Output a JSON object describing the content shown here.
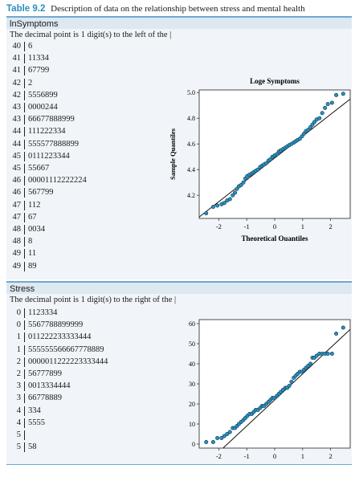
{
  "caption": {
    "table_number": "Table 9.2",
    "text": "Description of data on the relationship between stress and mental health"
  },
  "symptoms": {
    "header": "lnSymptoms",
    "note": "The decimal point is 1 digit(s) to the left of the |",
    "stem_leaf": [
      {
        "stem": "40",
        "leaves": "6"
      },
      {
        "stem": "41",
        "leaves": "11334"
      },
      {
        "stem": "41",
        "leaves": "67799"
      },
      {
        "stem": "42",
        "leaves": "2"
      },
      {
        "stem": "42",
        "leaves": "5556899"
      },
      {
        "stem": "43",
        "leaves": "0000244"
      },
      {
        "stem": "43",
        "leaves": "66677888999"
      },
      {
        "stem": "44",
        "leaves": "111222334"
      },
      {
        "stem": "44",
        "leaves": "555577888899"
      },
      {
        "stem": "45",
        "leaves": "0111223344"
      },
      {
        "stem": "45",
        "leaves": "55667"
      },
      {
        "stem": "46",
        "leaves": "00001112222224"
      },
      {
        "stem": "46",
        "leaves": "567799"
      },
      {
        "stem": "47",
        "leaves": "112"
      },
      {
        "stem": "47",
        "leaves": "67"
      },
      {
        "stem": "48",
        "leaves": "0034"
      },
      {
        "stem": "48",
        "leaves": "8"
      },
      {
        "stem": "49",
        "leaves": "11"
      },
      {
        "stem": "49",
        "leaves": "89"
      }
    ]
  },
  "stress": {
    "header": "Stress",
    "note": "The decimal point is 1 digit(s) to the right of the |",
    "stem_leaf": [
      {
        "stem": "0",
        "leaves": "1123334"
      },
      {
        "stem": "0",
        "leaves": "5567788899999"
      },
      {
        "stem": "1",
        "leaves": "011222233333444"
      },
      {
        "stem": "1",
        "leaves": "555555566667778889"
      },
      {
        "stem": "2",
        "leaves": "0000011222223333444"
      },
      {
        "stem": "2",
        "leaves": "56777899"
      },
      {
        "stem": "3",
        "leaves": "0013334444"
      },
      {
        "stem": "3",
        "leaves": "66778889"
      },
      {
        "stem": "4",
        "leaves": "334"
      },
      {
        "stem": "4",
        "leaves": "5555"
      },
      {
        "stem": "5",
        "leaves": ""
      },
      {
        "stem": "5",
        "leaves": "58"
      }
    ]
  },
  "chart_data": [
    {
      "type": "scatter",
      "title": "Loge Symptoms",
      "xlabel": "Theoretical Quantiles",
      "ylabel": "Sample Quantiles",
      "xlim": [
        -2.7,
        2.7
      ],
      "ylim": [
        4.02,
        5.02
      ],
      "x_ticks": [
        "-2",
        "-1",
        "0",
        "1",
        "2"
      ],
      "y_ticks": [
        "4.2",
        "4.4",
        "4.6",
        "4.8",
        "5.0"
      ],
      "reference_line": {
        "intercept": 4.49,
        "slope": 0.17
      },
      "point_color": "#2a8fbd",
      "x": [
        -2.45,
        -2.2,
        -2.05,
        -1.9,
        -1.8,
        -1.7,
        -1.6,
        -1.5,
        -1.42,
        -1.35,
        -1.28,
        -1.2,
        -1.12,
        -1.05,
        -0.98,
        -0.9,
        -0.82,
        -0.75,
        -0.68,
        -0.6,
        -0.52,
        -0.45,
        -0.38,
        -0.3,
        -0.22,
        -0.15,
        -0.08,
        0.0,
        0.08,
        0.15,
        0.22,
        0.3,
        0.38,
        0.45,
        0.52,
        0.6,
        0.68,
        0.75,
        0.82,
        0.9,
        0.98,
        1.05,
        1.12,
        1.2,
        1.28,
        1.35,
        1.42,
        1.5,
        1.6,
        1.7,
        1.8,
        1.9,
        2.05,
        2.2,
        2.45
      ],
      "y": [
        4.06,
        4.11,
        4.12,
        4.13,
        4.14,
        4.16,
        4.17,
        4.2,
        4.22,
        4.25,
        4.27,
        4.28,
        4.3,
        4.33,
        4.35,
        4.36,
        4.37,
        4.38,
        4.39,
        4.4,
        4.42,
        4.43,
        4.44,
        4.45,
        4.47,
        4.48,
        4.5,
        4.51,
        4.52,
        4.54,
        4.55,
        4.56,
        4.57,
        4.58,
        4.59,
        4.6,
        4.61,
        4.62,
        4.63,
        4.64,
        4.66,
        4.68,
        4.7,
        4.71,
        4.73,
        4.75,
        4.77,
        4.79,
        4.8,
        4.84,
        4.88,
        4.91,
        4.92,
        4.98,
        4.99
      ]
    },
    {
      "type": "scatter",
      "title": "",
      "xlabel": "",
      "ylabel": "",
      "xlim": [
        -2.7,
        2.7
      ],
      "ylim": [
        -2,
        62
      ],
      "x_ticks": [
        "-2",
        "-1",
        "0",
        "1",
        "2"
      ],
      "y_ticks": [
        "0",
        "10",
        "20",
        "30",
        "40",
        "50",
        "60"
      ],
      "reference_line": {
        "intercept": 22,
        "slope": 13
      },
      "point_color": "#2a8fbd",
      "x": [
        -2.45,
        -2.2,
        -2.05,
        -1.9,
        -1.8,
        -1.7,
        -1.6,
        -1.5,
        -1.42,
        -1.35,
        -1.28,
        -1.2,
        -1.12,
        -1.05,
        -0.98,
        -0.9,
        -0.82,
        -0.75,
        -0.68,
        -0.6,
        -0.52,
        -0.45,
        -0.38,
        -0.3,
        -0.22,
        -0.15,
        -0.08,
        0.0,
        0.08,
        0.15,
        0.22,
        0.3,
        0.38,
        0.45,
        0.52,
        0.6,
        0.68,
        0.75,
        0.82,
        0.9,
        0.98,
        1.05,
        1.12,
        1.2,
        1.28,
        1.35,
        1.42,
        1.5,
        1.6,
        1.7,
        1.8,
        1.9,
        2.05,
        2.2,
        2.45
      ],
      "y": [
        1,
        1,
        3,
        3,
        4,
        5,
        6,
        8,
        8,
        9,
        10,
        11,
        12,
        13,
        14,
        15,
        15,
        16,
        17,
        17,
        18,
        19,
        19,
        20,
        21,
        22,
        23,
        23,
        24,
        25,
        26,
        27,
        28,
        28,
        29,
        31,
        33,
        34,
        35,
        36,
        36,
        37,
        38,
        39,
        40,
        43,
        43,
        44,
        45,
        45,
        45,
        45,
        45,
        55,
        58
      ]
    }
  ]
}
